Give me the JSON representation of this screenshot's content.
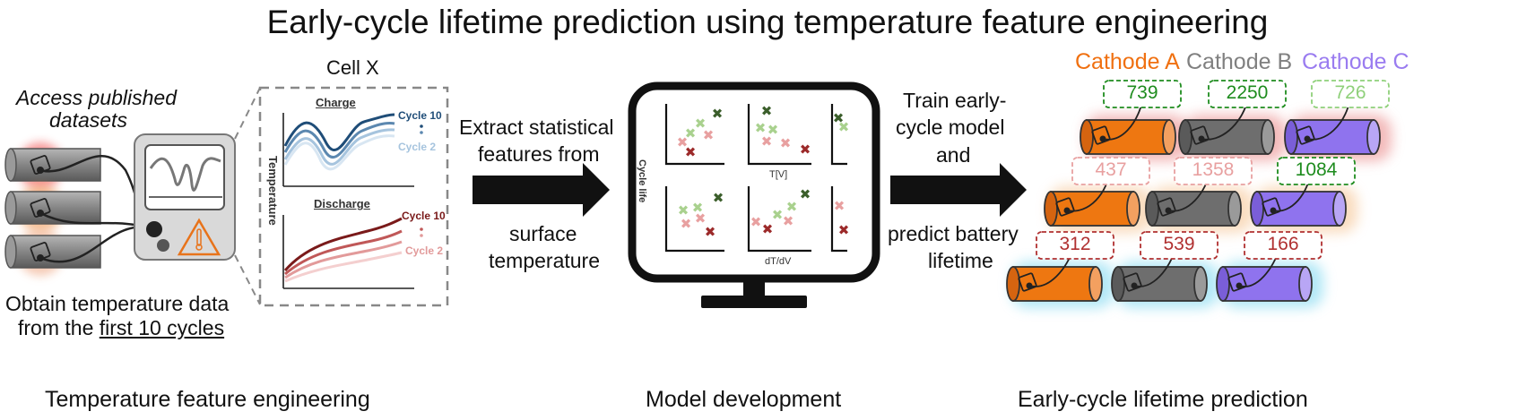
{
  "title": "Early-cycle lifetime prediction using temperature feature engineering",
  "sections": {
    "left": "Temperature feature engineering",
    "middle": "Model development",
    "right": "Early-cycle lifetime prediction"
  },
  "left_panel": {
    "access_line1": "Access published",
    "access_line2": "datasets",
    "obtain_line1": "Obtain temperature data",
    "obtain_line2_prefix": "from the ",
    "obtain_line2_underlined": "first 10 cycles",
    "cell_label": "Cell X",
    "charge_label": "Charge",
    "discharge_label": "Discharge",
    "y_axis_label": "Temperature",
    "cycle_10": "Cycle 10",
    "cycle_2": "Cycle 2"
  },
  "arrow1_text": {
    "line1": "Extract statistical",
    "line2": "features from",
    "line3": "surface",
    "line4": "temperature"
  },
  "monitor": {
    "y_label": "Cycle life",
    "x_label_top": "T[V]",
    "x_label_bottom": "dT/dV"
  },
  "arrow2_text": {
    "line1": "Train early-",
    "line2": "cycle model",
    "line3": "and",
    "line4": "predict battery",
    "line5": "lifetime"
  },
  "cathodes": [
    {
      "name": "Cathode A",
      "color": "#f07010",
      "body": "#ee7711"
    },
    {
      "name": "Cathode B",
      "color": "#808080",
      "body": "#6e6e6e"
    },
    {
      "name": "Cathode C",
      "color": "#9a7cf0",
      "body": "#8f73ee"
    }
  ],
  "predictions": [
    {
      "row": 1,
      "values": [
        "739",
        "2250",
        "726"
      ],
      "colors": [
        "#1e8c1e",
        "#1e8c1e",
        "#8fd07a"
      ],
      "glow": "#e88080"
    },
    {
      "row": 2,
      "values": [
        "437",
        "1358",
        "1084"
      ],
      "colors": [
        "#e8a0a0",
        "#e8a0a0",
        "#1e8c1e"
      ],
      "glow": "#f5c08a"
    },
    {
      "row": 3,
      "values": [
        "312",
        "539",
        "166"
      ],
      "colors": [
        "#b03030",
        "#b03030",
        "#b03030"
      ],
      "glow": "#7fd8f0"
    }
  ]
}
